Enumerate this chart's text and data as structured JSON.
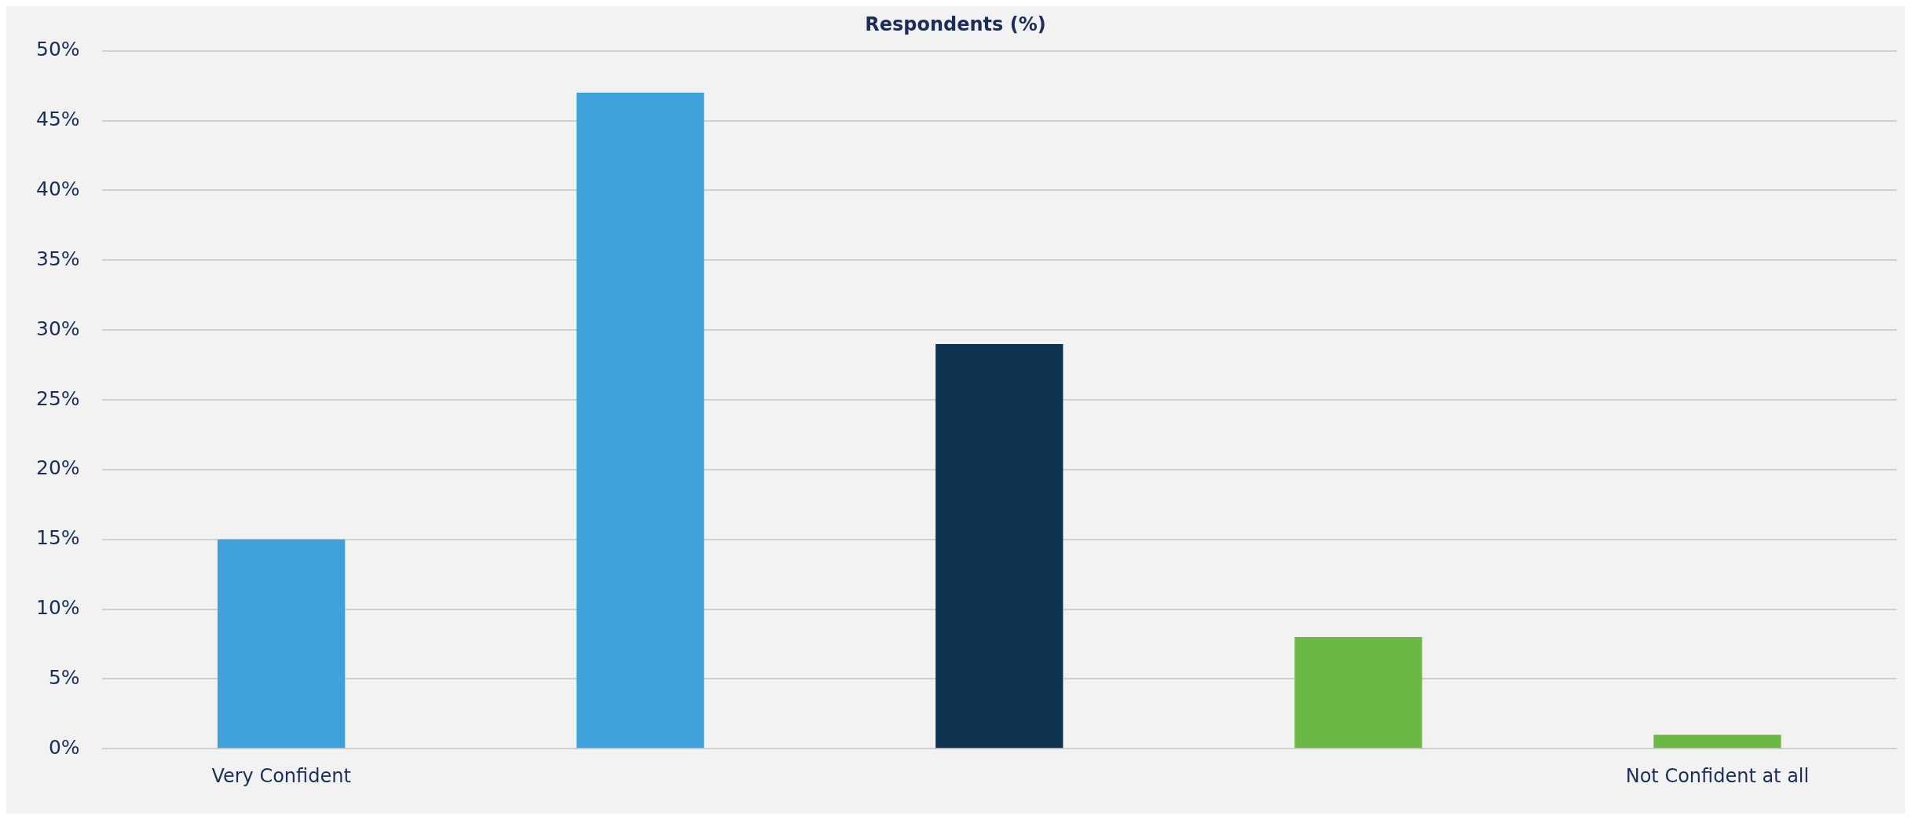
{
  "chart_data": {
    "type": "bar",
    "title": "Respondents (%)",
    "categories": [
      "Very Confident",
      null,
      null,
      null,
      "Not Confident at all"
    ],
    "values": [
      15,
      47,
      29,
      8,
      1
    ],
    "colors": [
      "#3ea1db",
      "#3ea1db",
      "#0e3350",
      "#6bb844",
      "#6bb844"
    ],
    "ylim": [
      0,
      50
    ],
    "yticks": [
      {
        "value": 0,
        "label": "0%"
      },
      {
        "value": 5,
        "label": "5%"
      },
      {
        "value": 10,
        "label": "10%"
      },
      {
        "value": 15,
        "label": "15%"
      },
      {
        "value": 20,
        "label": "20%"
      },
      {
        "value": 25,
        "label": "25%"
      },
      {
        "value": 30,
        "label": "30%"
      },
      {
        "value": 35,
        "label": "35%"
      },
      {
        "value": 40,
        "label": "40%"
      },
      {
        "value": 45,
        "label": "45%"
      },
      {
        "value": 50,
        "label": "50%"
      }
    ],
    "grid": "y",
    "legend": false
  }
}
